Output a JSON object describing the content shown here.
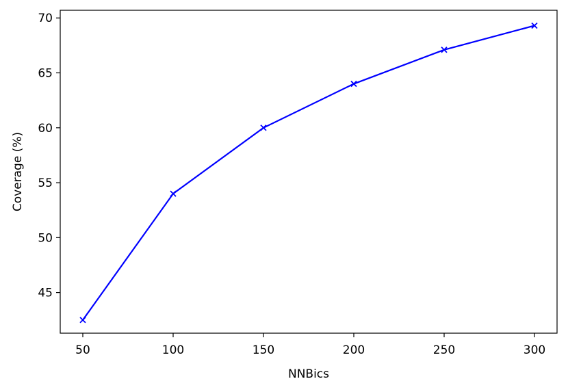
{
  "chart_data": {
    "type": "line",
    "xlabel": "NNBics",
    "ylabel": "Coverage (%)",
    "x": [
      50,
      100,
      150,
      200,
      250,
      300
    ],
    "series": [
      {
        "name": null,
        "color": "#0000ff",
        "marker": "x",
        "values": [
          42.5,
          54,
          60,
          64,
          67.1,
          69.3
        ]
      }
    ],
    "xlim": [
      37.5,
      312.5
    ],
    "ylim": [
      41.3,
      70.7
    ],
    "xticks": [
      50,
      100,
      150,
      200,
      250,
      300
    ],
    "yticks": [
      45,
      50,
      55,
      60,
      65,
      70
    ],
    "grid": false
  }
}
